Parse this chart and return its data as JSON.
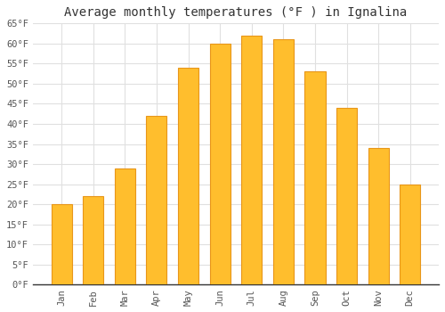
{
  "months": [
    "Jan",
    "Feb",
    "Mar",
    "Apr",
    "May",
    "Jun",
    "Jul",
    "Aug",
    "Sep",
    "Oct",
    "Nov",
    "Dec"
  ],
  "values": [
    20,
    22,
    29,
    42,
    54,
    60,
    62,
    61,
    53,
    44,
    34,
    25
  ],
  "bar_color": "#FFBE2D",
  "bar_edge_color": "#E8961A",
  "title": "Average monthly temperatures (°F ) in Ignalina",
  "ylim": [
    0,
    65
  ],
  "yticks": [
    0,
    5,
    10,
    15,
    20,
    25,
    30,
    35,
    40,
    45,
    50,
    55,
    60,
    65
  ],
  "ylabel_suffix": "°F",
  "title_fontsize": 10,
  "tick_fontsize": 7.5,
  "background_color": "#ffffff",
  "grid_color": "#e0e0e0",
  "bar_width": 0.65
}
